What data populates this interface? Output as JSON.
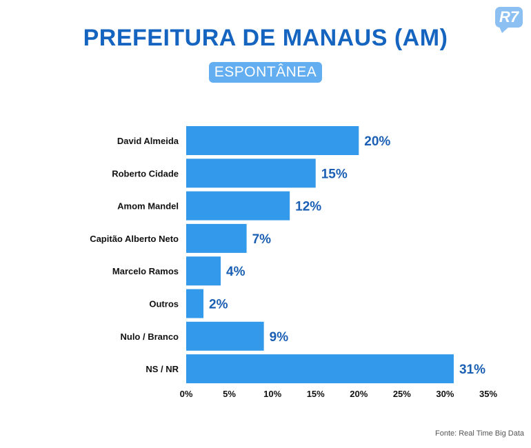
{
  "header": {
    "title": "PREFEITURA DE MANAUS (AM)",
    "subtitle": "ESPONTÂNEA",
    "logo_text": "R7"
  },
  "footer": {
    "source": "Fonte: Real Time Big Data"
  },
  "colors": {
    "bar": "#3399ea",
    "value_label": "#1a5fb4",
    "title": "#1565c0",
    "badge": "#63aef0"
  },
  "chart_data": {
    "type": "bar",
    "orientation": "horizontal",
    "title": "PREFEITURA DE MANAUS (AM)",
    "subtitle": "ESPONTÂNEA",
    "categories": [
      "David Almeida",
      "Roberto Cidade",
      "Amom Mandel",
      "Capitão Alberto Neto",
      "Marcelo Ramos",
      "Outros",
      "Nulo / Branco",
      "NS / NR"
    ],
    "values": [
      20,
      15,
      12,
      7,
      4,
      2,
      9,
      31
    ],
    "value_labels": [
      "20%",
      "15%",
      "12%",
      "7%",
      "4%",
      "2%",
      "9%",
      "31%"
    ],
    "xlim": [
      0,
      35
    ],
    "xticks": [
      0,
      5,
      10,
      15,
      20,
      25,
      30,
      35
    ],
    "xtick_labels": [
      "0%",
      "5%",
      "10%",
      "15%",
      "20%",
      "25%",
      "30%",
      "35%"
    ],
    "grid": false,
    "legend": "none"
  }
}
